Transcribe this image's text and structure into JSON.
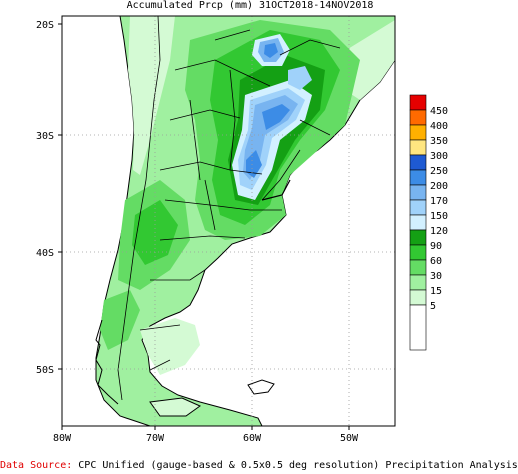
{
  "title": "Accumulated Prcp (mm) 31OCT2018-14NOV2018",
  "lat_labels": [
    "20S",
    "30S",
    "40S",
    "50S"
  ],
  "lon_labels": [
    "80W",
    "70W",
    "60W",
    "50W"
  ],
  "legend": {
    "levels": [
      "450",
      "400",
      "350",
      "300",
      "250",
      "200",
      "170",
      "150",
      "120",
      "90",
      "60",
      "30",
      "15",
      "5"
    ],
    "colors": [
      "#e60000",
      "#ff6a00",
      "#ffb000",
      "#ffe680",
      "#1e5ad2",
      "#3c8ce6",
      "#78b4f0",
      "#a0d2fa",
      "#d2f0ff",
      "#14a014",
      "#32c832",
      "#64dc64",
      "#a0f0a0",
      "#d4fad4",
      "#ffffff"
    ]
  },
  "footer": {
    "label": "Data Source:",
    "text": "CPC Unified (gauge-based & 0.5x0.5 deg resolution) Precipitation Analysis"
  }
}
